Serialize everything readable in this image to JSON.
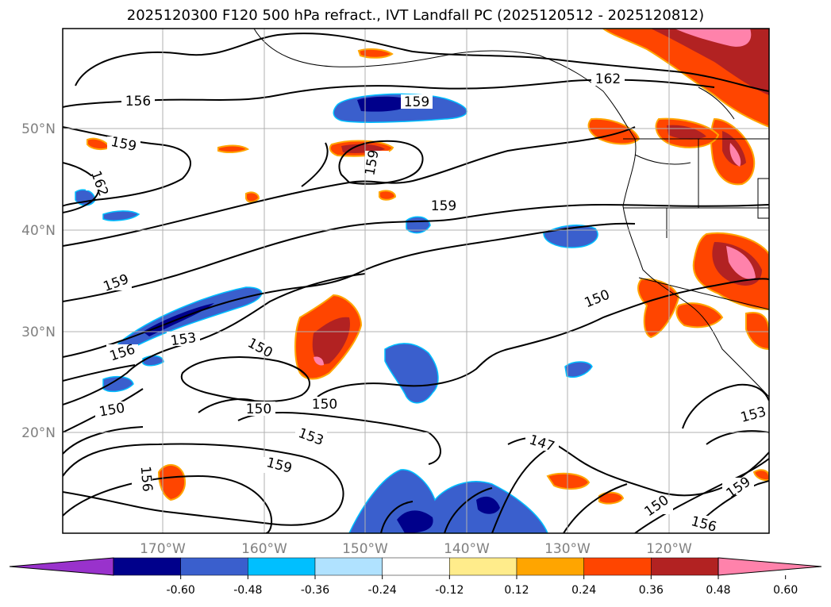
{
  "title": "2025120300 F120 500 hPa refract., IVT Landfall PC (2025120512 - 2025120812)",
  "lat_labels": [
    "50°N",
    "40°N",
    "30°N",
    "20°N"
  ],
  "lon_labels": [
    "170°W",
    "160°W",
    "150°W",
    "140°W",
    "130°W",
    "120°W"
  ],
  "contour_labels": [
    "156",
    "159",
    "162",
    "159",
    "159",
    "159",
    "162",
    "159",
    "156",
    "153",
    "150",
    "150",
    "150",
    "150",
    "153",
    "159",
    "156",
    "147",
    "150",
    "156",
    "153",
    "159",
    "150"
  ],
  "colorbar": {
    "ticks": [
      "-0.60",
      "-0.48",
      "-0.36",
      "-0.24",
      "-0.12",
      "0.12",
      "0.24",
      "0.36",
      "0.48",
      "0.60"
    ],
    "colors": [
      "#9932cc",
      "#00008b",
      "#3a5fcd",
      "#00bfff",
      "#b0e2ff",
      "#ffffff",
      "#ffec8b",
      "#ffa500",
      "#ff4500",
      "#b22222",
      "#ff82ab"
    ]
  },
  "colors": {
    "grid": "#b0b0b0",
    "axis_text": "#808080",
    "frame": "#000000"
  }
}
